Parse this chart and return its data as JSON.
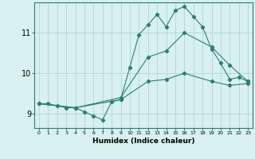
{
  "title": "",
  "xlabel": "Humidex (Indice chaleur)",
  "ylabel": "",
  "bg_color": "#d8f0f0",
  "grid_color": "#b8d8d8",
  "line_color": "#2e7d72",
  "x_ticks": [
    0,
    1,
    2,
    3,
    4,
    5,
    6,
    7,
    8,
    9,
    10,
    11,
    12,
    13,
    14,
    15,
    16,
    17,
    18,
    19,
    20,
    21,
    22,
    23
  ],
  "y_ticks": [
    9,
    10,
    11
  ],
  "xlim": [
    -0.5,
    23.5
  ],
  "ylim": [
    8.65,
    11.75
  ],
  "line1": {
    "x": [
      0,
      1,
      2,
      3,
      4,
      5,
      6,
      7,
      8,
      9,
      10,
      11,
      12,
      13,
      14,
      15,
      16,
      17,
      18,
      19,
      20,
      21,
      22,
      23
    ],
    "y": [
      9.25,
      9.25,
      9.2,
      9.15,
      9.15,
      9.05,
      8.95,
      8.85,
      9.3,
      9.35,
      10.15,
      10.95,
      11.2,
      11.45,
      11.15,
      11.55,
      11.65,
      11.4,
      11.15,
      10.6,
      10.25,
      9.85,
      9.9,
      9.8
    ]
  },
  "line2": {
    "x": [
      0,
      4,
      9,
      12,
      14,
      16,
      19,
      21,
      23
    ],
    "y": [
      9.25,
      9.15,
      9.4,
      10.4,
      10.55,
      11.0,
      10.65,
      10.2,
      9.8
    ]
  },
  "line3": {
    "x": [
      0,
      4,
      9,
      12,
      14,
      16,
      19,
      21,
      23
    ],
    "y": [
      9.25,
      9.15,
      9.35,
      9.8,
      9.85,
      10.0,
      9.8,
      9.7,
      9.75
    ]
  }
}
